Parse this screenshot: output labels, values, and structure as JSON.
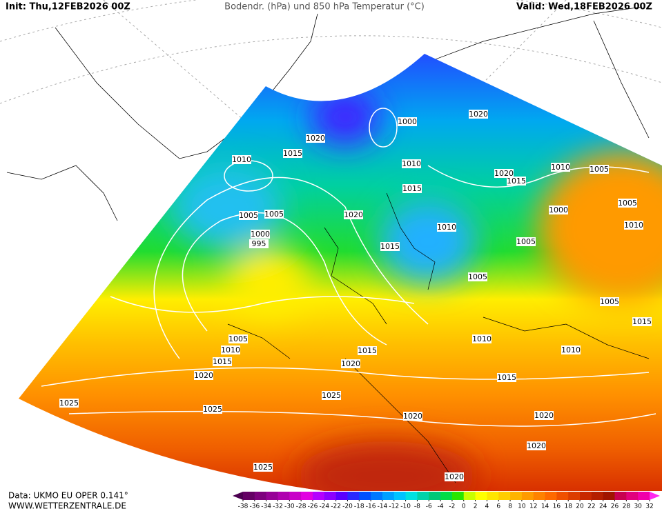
{
  "header": {
    "init": "Init: Thu,12FEB2026 00Z",
    "title": "Bodendr. (hPa) und 850 hPa Temperatur (°C)",
    "valid": "Valid: Wed,18FEB2026 00Z"
  },
  "footer": {
    "source": "Data: UKMO EU OPER 0.141°",
    "website": "WWW.WETTERZENTRALE.DE"
  },
  "legend": {
    "ticks": [
      -38,
      -36,
      -34,
      -32,
      -30,
      -28,
      -26,
      -24,
      -22,
      -20,
      -18,
      -16,
      -14,
      -12,
      -10,
      -8,
      -6,
      -4,
      -2,
      0,
      2,
      4,
      6,
      8,
      10,
      12,
      14,
      16,
      18,
      20,
      22,
      24,
      26,
      28,
      30,
      32
    ],
    "colors": [
      "#4b0050",
      "#640064",
      "#7d007d",
      "#960096",
      "#af00af",
      "#c800c8",
      "#e100e1",
      "#b400ff",
      "#8c00ff",
      "#5a00ff",
      "#2828ff",
      "#0050ff",
      "#0078ff",
      "#00a0ff",
      "#00c3ff",
      "#00e1e1",
      "#00d2aa",
      "#00c878",
      "#00dc46",
      "#28e600",
      "#c8ff00",
      "#ffff00",
      "#ffe600",
      "#ffcd00",
      "#ffb400",
      "#ff9b00",
      "#ff8200",
      "#ff6900",
      "#f05000",
      "#dc3c00",
      "#c82800",
      "#b41e00",
      "#a01400",
      "#c80050",
      "#e1007d",
      "#f000aa",
      "#ff28f0"
    ]
  },
  "isobar_labels": [
    1020,
    1015,
    1010,
    1000,
    1020,
    1010,
    1015,
    1020,
    1015,
    1010,
    1005,
    1005,
    1005,
    1020,
    1000,
    1005,
    1010,
    1000,
    995,
    1010,
    1015,
    1005,
    1005,
    1005,
    1015,
    1005,
    1010,
    1015,
    1020,
    1015,
    1020,
    1010,
    1010,
    1015,
    1025,
    1025,
    1025,
    1020,
    1020,
    1020,
    1025,
    1020
  ]
}
